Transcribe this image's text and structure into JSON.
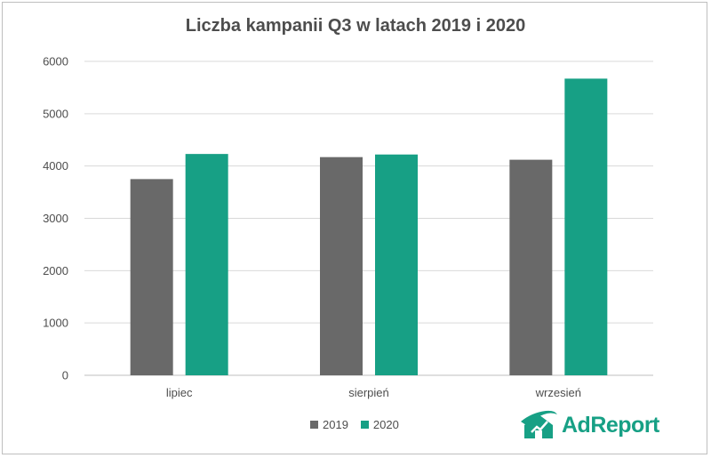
{
  "chart_data": {
    "type": "bar",
    "title": "Liczba kampanii Q3 w latach 2019 i 2020",
    "categories": [
      "lipiec",
      "sierpień",
      "wrzesień"
    ],
    "series": [
      {
        "name": "2019",
        "values": [
          3750,
          4170,
          4120
        ],
        "color": "#696969"
      },
      {
        "name": "2020",
        "values": [
          4230,
          4220,
          5670
        ],
        "color": "#17a085"
      }
    ],
    "ylim": [
      0,
      6000
    ],
    "yticks": [
      0,
      1000,
      2000,
      3000,
      4000,
      5000,
      6000
    ],
    "xlabel": "",
    "ylabel": "",
    "grid": true,
    "legend": "bottom"
  },
  "legend": {
    "items": [
      {
        "label": "2019",
        "color": "#696969"
      },
      {
        "label": "2020",
        "color": "#17a085"
      }
    ]
  },
  "logo": {
    "text": "AdReport",
    "icon": "adreport-logo-icon",
    "color": "#17a085"
  }
}
